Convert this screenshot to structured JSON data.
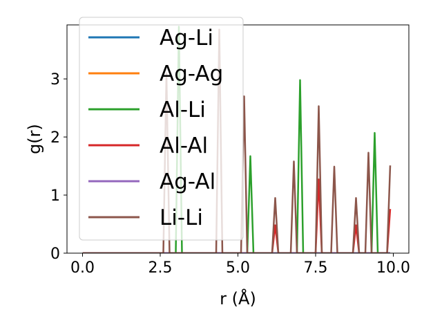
{
  "chart_data": {
    "type": "line",
    "xlabel": "r (Å)",
    "ylabel": "g(r)",
    "xlim": [
      -0.5,
      10.5
    ],
    "ylim": [
      0,
      3.93
    ],
    "xticks": [
      0.0,
      2.5,
      5.0,
      7.5,
      10.0
    ],
    "xtick_labels": [
      "0.0",
      "2.5",
      "5.0",
      "7.5",
      "10.0"
    ],
    "yticks": [
      0,
      1,
      2,
      3
    ],
    "ytick_labels": [
      "0",
      "1",
      "2",
      "3"
    ],
    "grid": false,
    "legend_position": "top-left",
    "series": [
      {
        "name": "Ag-Li",
        "color": "#1f77b4",
        "x": [
          0,
          9.9
        ],
        "y": [
          0,
          0
        ]
      },
      {
        "name": "Ag-Ag",
        "color": "#ff7f0e",
        "x": [
          0,
          9.9
        ],
        "y": [
          0,
          0
        ]
      },
      {
        "name": "Al-Li",
        "color": "#2ca02c",
        "x": [
          0,
          3.0,
          3.1,
          3.2,
          5.3,
          5.4,
          5.5,
          6.9,
          7.0,
          7.1,
          9.3,
          9.4,
          9.5,
          9.9
        ],
        "y": [
          0,
          0,
          3.9,
          0,
          0,
          1.67,
          0,
          0,
          2.98,
          0,
          0,
          2.07,
          0,
          0
        ]
      },
      {
        "name": "Al-Al",
        "color": "#d62728",
        "x": [
          0,
          6.1,
          6.2,
          6.3,
          7.5,
          7.6,
          7.7,
          8.7,
          8.8,
          8.9,
          9.8,
          9.9
        ],
        "y": [
          0,
          0,
          0.48,
          0,
          0,
          1.27,
          0,
          0,
          0.48,
          0,
          0,
          0.76
        ]
      },
      {
        "name": "Ag-Al",
        "color": "#9467bd",
        "x": [
          0,
          9.9
        ],
        "y": [
          0,
          0
        ]
      },
      {
        "name": "Li-Li",
        "color": "#8c564b",
        "x": [
          0,
          2.6,
          2.7,
          2.8,
          4.3,
          4.4,
          4.5,
          5.1,
          5.2,
          5.3,
          6.1,
          6.2,
          6.3,
          6.7,
          6.8,
          6.9,
          7.5,
          7.6,
          7.7,
          8.0,
          8.1,
          8.2,
          8.7,
          8.8,
          8.9,
          9.1,
          9.2,
          9.3,
          9.8,
          9.9
        ],
        "y": [
          0,
          0,
          3.1,
          0,
          0,
          3.85,
          0,
          0,
          2.7,
          0,
          0,
          0.95,
          0,
          0,
          1.58,
          0,
          0,
          2.53,
          0,
          0,
          1.49,
          0,
          0,
          0.95,
          0,
          0,
          1.73,
          0,
          0,
          1.51
        ]
      }
    ]
  }
}
